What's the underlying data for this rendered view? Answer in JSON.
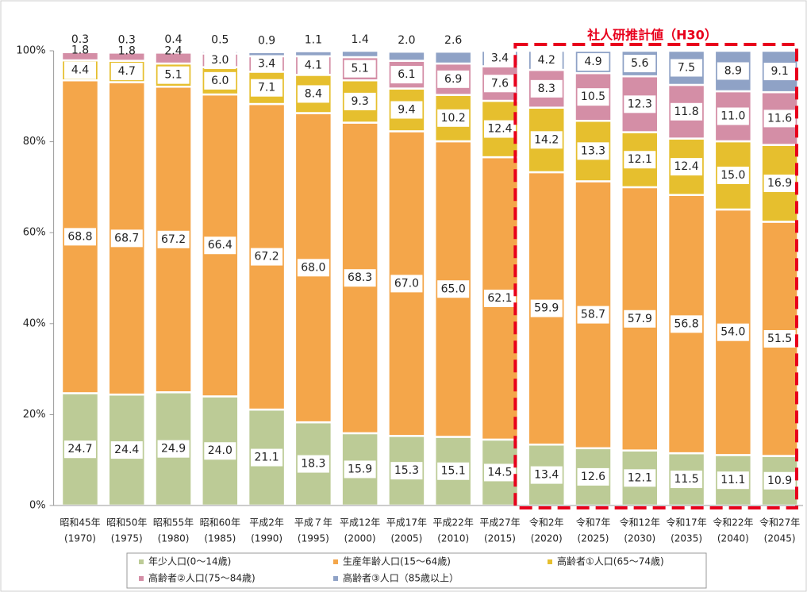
{
  "chart_data": {
    "type": "stacked_bar",
    "annotation": "社人研推計値（H30）",
    "categories": [
      "昭和45年",
      "昭和50年",
      "昭和55年",
      "昭和60年",
      "平成2年",
      "平成７年",
      "平成12年",
      "平成17年",
      "平成22年",
      "平成27年",
      "令和2年",
      "令和7年",
      "令和12年",
      "令和17年",
      "令和22年",
      "令和27年"
    ],
    "category_years": [
      "(1970)",
      "(1975)",
      "(1980)",
      "(1985)",
      "(1990)",
      "(1995)",
      "(2000)",
      "(2005)",
      "(2010)",
      "(2015)",
      "(2020)",
      "(2025)",
      "(2030)",
      "(2035)",
      "(2040)",
      "(2045)"
    ],
    "series": [
      {
        "name": "年少人口(0～14歳)",
        "color": "#bccb96",
        "values": [
          24.7,
          24.4,
          24.9,
          24.0,
          21.1,
          18.3,
          15.9,
          15.3,
          15.1,
          14.5,
          13.4,
          12.6,
          12.1,
          11.5,
          11.1,
          10.9
        ],
        "value_labels": [
          "24.7",
          "24.4",
          "24.9",
          "24.0",
          "21.1",
          "18.3",
          "15.9",
          "15.3",
          "15.1",
          "14.5",
          "13.4",
          "12.6",
          "12.1",
          "11.5",
          "11.1",
          "10.9"
        ]
      },
      {
        "name": "生産年齢人口(15～64歳)",
        "color": "#f4a64a",
        "values": [
          68.8,
          68.7,
          67.2,
          66.4,
          67.2,
          68.0,
          68.3,
          67.0,
          65.0,
          62.1,
          59.9,
          58.7,
          57.9,
          56.8,
          54.0,
          51.5
        ],
        "value_labels": [
          "68.8",
          "68.7",
          "67.2",
          "66.4",
          "67.2",
          "68.0",
          "68.3",
          "67.0",
          "65.0",
          "62.1",
          "59.9",
          "58.7",
          "57.9",
          "56.8",
          "54.0",
          "51.5"
        ]
      },
      {
        "name": "高齢者①人口(65～74歳)",
        "color": "#e6bf2e",
        "values": [
          4.4,
          4.7,
          5.1,
          6.0,
          7.1,
          8.4,
          9.3,
          9.4,
          10.2,
          12.4,
          14.2,
          13.3,
          12.1,
          12.4,
          15.0,
          16.9
        ],
        "value_labels": [
          "4.4",
          "4.7",
          "5.1",
          "6.0",
          "7.1",
          "8.4",
          "9.3",
          "9.4",
          "10.2",
          "12.4",
          "14.2",
          "13.3",
          "12.1",
          "12.4",
          "15.0",
          "16.9"
        ]
      },
      {
        "name": "高齢者②人口(75～84歳)",
        "color": "#d48ea6",
        "values": [
          1.8,
          1.8,
          2.4,
          3.0,
          3.4,
          4.1,
          5.1,
          6.1,
          6.9,
          7.6,
          8.3,
          10.5,
          12.3,
          11.8,
          11.0,
          11.6
        ],
        "value_labels": [
          "1.8",
          "1.8",
          "2.4",
          "3.0",
          "3.4",
          "4.1",
          "5.1",
          "6.1",
          "6.9",
          "7.6",
          "8.3",
          "10.5",
          "12.3",
          "11.8",
          "11.0",
          "11.6"
        ]
      },
      {
        "name": "高齢者③人口（85歳以上）",
        "color": "#8fa2c6",
        "values": [
          0.3,
          0.3,
          0.4,
          0.5,
          0.9,
          1.1,
          1.4,
          2.0,
          2.6,
          3.4,
          4.2,
          4.9,
          5.6,
          7.5,
          8.9,
          9.1
        ],
        "value_labels": [
          "0.3",
          "0.3",
          "0.4",
          "0.5",
          "0.9",
          "1.1",
          "1.4",
          "2.0",
          "2.6",
          "3.4",
          "4.2",
          "4.9",
          "5.6",
          "7.5",
          "8.9",
          "9.1"
        ]
      }
    ],
    "ylim": [
      0,
      100
    ],
    "yticks": [
      {
        "value": 0,
        "label": "0%"
      },
      {
        "value": 20,
        "label": "20%"
      },
      {
        "value": 40,
        "label": "40%"
      },
      {
        "value": 60,
        "label": "60%"
      },
      {
        "value": 80,
        "label": "80%"
      },
      {
        "value": 100,
        "label": "100%"
      }
    ],
    "legend": "bottom"
  }
}
